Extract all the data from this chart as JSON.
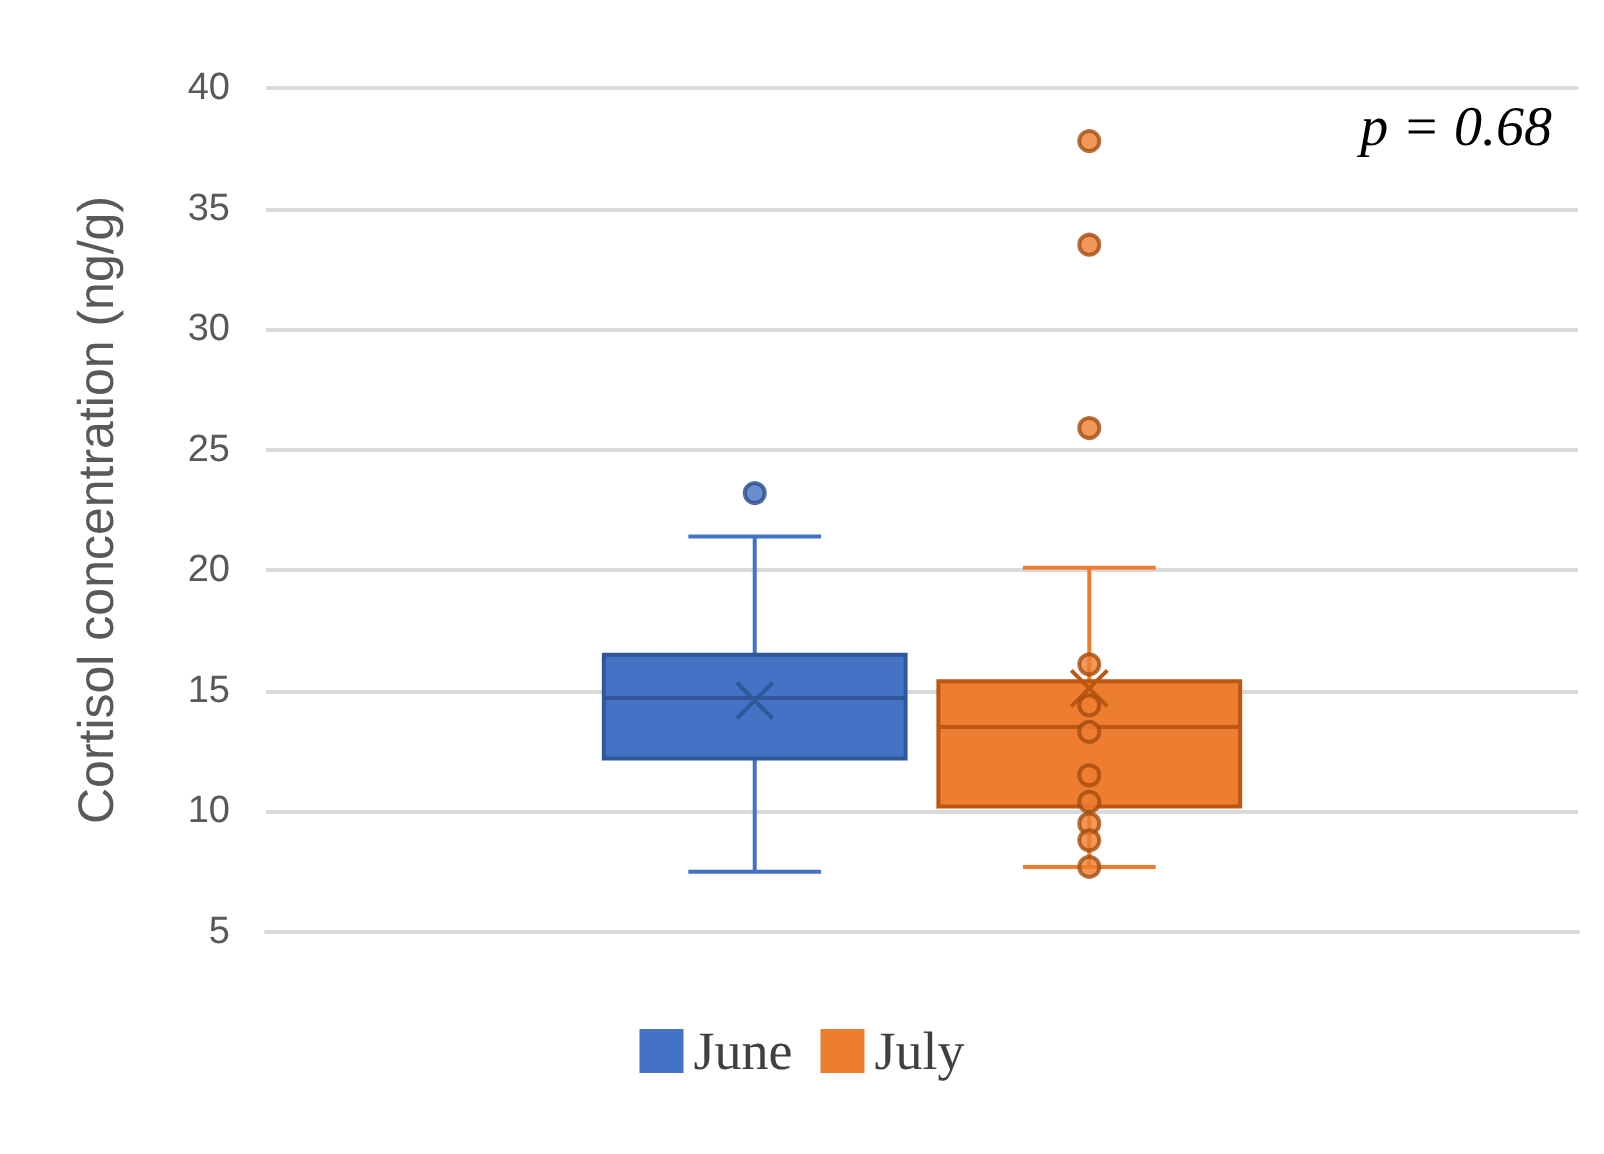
{
  "chart_data": {
    "type": "box",
    "ylabel": "Cortisol concentration (ng/g)",
    "categories": [
      null
    ],
    "series": [
      {
        "name": "June",
        "color": "#4472c4",
        "boxes": [
          {
            "low": 7.5,
            "q1": 12.2,
            "median": 14.7,
            "q3": 16.5,
            "high": 21.4,
            "mean": 14.6,
            "outliers": [
              23.2
            ]
          }
        ]
      },
      {
        "name": "July",
        "color": "#ed7d31",
        "boxes": [
          {
            "low": 7.7,
            "q1": 10.2,
            "median": 13.5,
            "q3": 15.4,
            "high": 20.1,
            "mean": 15.1,
            "outliers": [
              37.8,
              33.5,
              25.9,
              16.1,
              14.4,
              13.3,
              11.5,
              10.4,
              9.5,
              8.8,
              7.7
            ]
          }
        ]
      }
    ],
    "ylim": [
      5,
      40
    ],
    "yticks": [
      5,
      10,
      15,
      20,
      25,
      30,
      35,
      40
    ],
    "grid": "y",
    "legend": "bottom",
    "annotations": [
      "p = 0.68"
    ]
  }
}
